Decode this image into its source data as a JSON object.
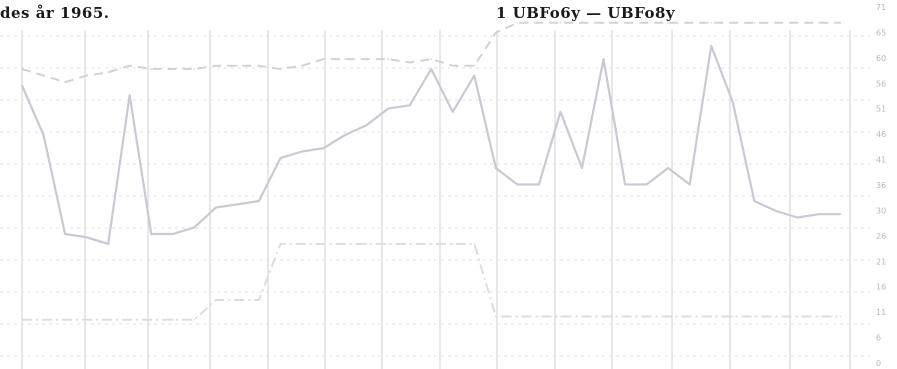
{
  "header": {
    "left_text": "des år 1965.",
    "right_text": "1 UBFo6y — UBFo8y"
  },
  "chart_data": {
    "type": "line",
    "xlim": [
      0,
      39
    ],
    "ylim": [
      0,
      100
    ],
    "grid": true,
    "x": [
      0,
      1,
      2,
      3,
      4,
      5,
      6,
      7,
      8,
      9,
      10,
      11,
      12,
      13,
      14,
      15,
      16,
      17,
      18,
      19,
      20,
      21,
      22,
      23,
      24,
      25,
      26,
      27,
      28,
      29,
      30,
      31,
      32,
      33,
      34,
      35,
      36,
      37,
      38
    ],
    "y_ticks": [
      "71",
      "65",
      "60",
      "56",
      "51",
      "46",
      "41",
      "36",
      "30",
      "26",
      "21",
      "16",
      "11",
      "6",
      "0"
    ],
    "series": [
      {
        "style": "solid",
        "color": "#c9c9d6",
        "values": [
          85,
          70,
          40,
          39,
          37,
          82,
          40,
          40,
          42,
          48,
          49,
          50,
          63,
          65,
          66,
          70,
          73,
          78,
          79,
          90,
          77,
          88,
          60,
          55,
          55,
          77,
          60,
          93,
          55,
          55,
          60,
          55,
          97,
          80,
          50,
          47,
          45,
          46,
          46
        ]
      },
      {
        "style": "dashed",
        "color": "#d2d2d2",
        "values": [
          90,
          88,
          86,
          88,
          89,
          91,
          90,
          90,
          90,
          91,
          91,
          91,
          90,
          91,
          93,
          93,
          93,
          93,
          92,
          93,
          91,
          91,
          101,
          104,
          104,
          104,
          104,
          104,
          104,
          104,
          104,
          104,
          104,
          104,
          104,
          104,
          104,
          104,
          104
        ]
      },
      {
        "style": "dashdot",
        "color": "#dddddd",
        "values": [
          14,
          14,
          14,
          14,
          14,
          14,
          14,
          14,
          14,
          20,
          20,
          20,
          37,
          37,
          37,
          37,
          37,
          37,
          37,
          37,
          37,
          37,
          15,
          15,
          15,
          15,
          15,
          15,
          15,
          15,
          15,
          15,
          15,
          15,
          15,
          15,
          15,
          15,
          15
        ]
      }
    ]
  }
}
